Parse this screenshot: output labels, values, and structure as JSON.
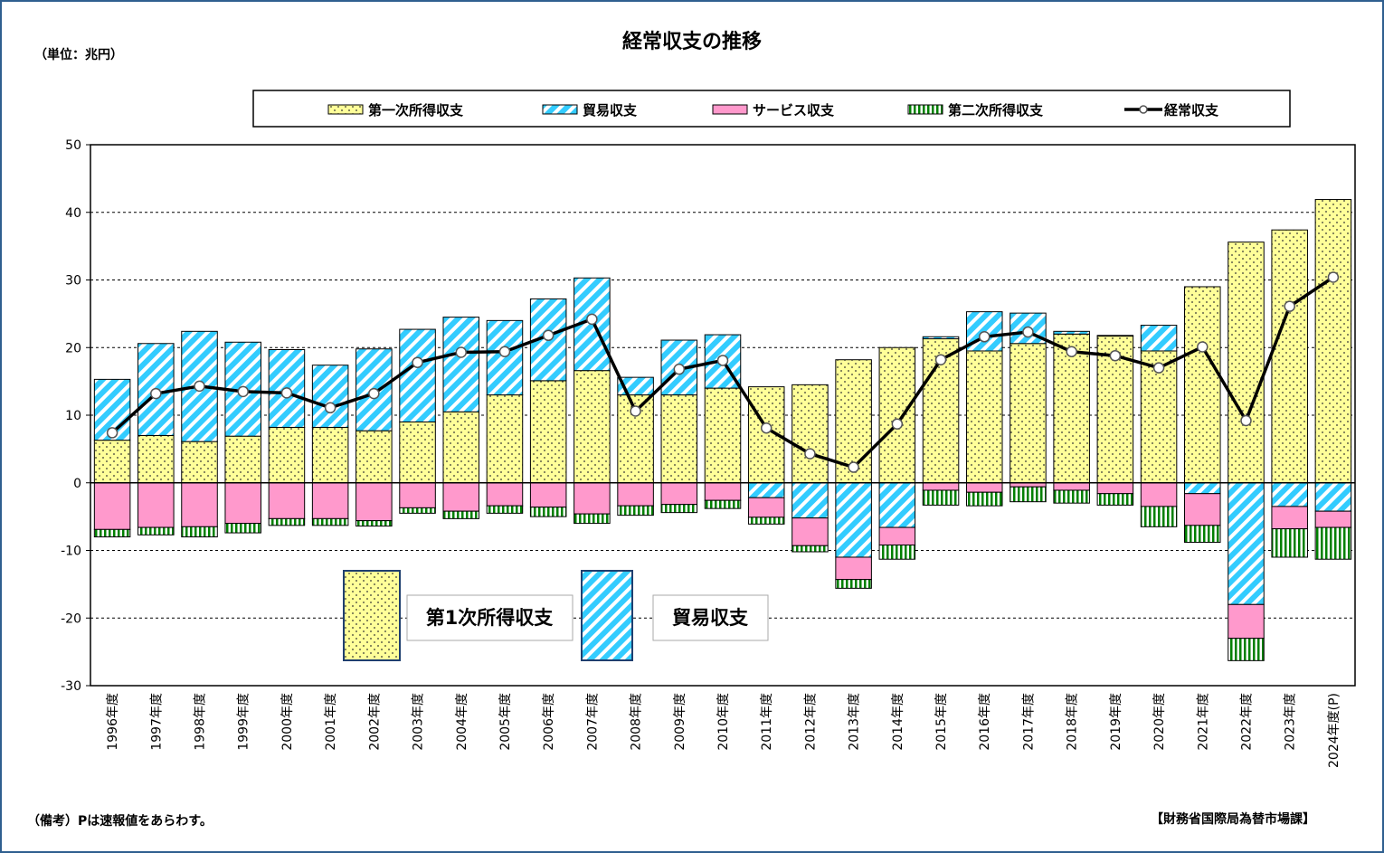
{
  "title": "経常収支の推移",
  "unit_label": "（単位：兆円）",
  "footnote": "（備考）Pは速報値をあらわす。",
  "source": "【財務省国際局為替市場課】",
  "legend": {
    "items": [
      {
        "key": "primary",
        "label": "第一次所得収支"
      },
      {
        "key": "trade",
        "label": "貿易収支"
      },
      {
        "key": "service",
        "label": "サービス収支"
      },
      {
        "key": "secondary",
        "label": "第二次所得収支"
      },
      {
        "key": "current",
        "label": "経常収支"
      }
    ]
  },
  "callouts": [
    {
      "key": "primary",
      "label": "第1次所得収支"
    },
    {
      "key": "trade",
      "label": "貿易収支"
    }
  ],
  "colors": {
    "primary_fill": "#ffff99",
    "trade_fill": "#33ccff",
    "service_fill": "#ff99cc",
    "secondary_fill": "#008000",
    "line": "#000000"
  },
  "chart_data": {
    "type": "bar",
    "stacked": true,
    "ylim": [
      -30,
      50
    ],
    "yticks": [
      -30,
      -20,
      -10,
      0,
      10,
      20,
      30,
      40,
      50
    ],
    "grid": true,
    "legend_position": "top",
    "categories": [
      "1996年度",
      "1997年度",
      "1998年度",
      "1999年度",
      "2000年度",
      "2001年度",
      "2002年度",
      "2003年度",
      "2004年度",
      "2005年度",
      "2006年度",
      "2007年度",
      "2008年度",
      "2009年度",
      "2010年度",
      "2011年度",
      "2012年度",
      "2013年度",
      "2014年度",
      "2015年度",
      "2016年度",
      "2017年度",
      "2018年度",
      "2019年度",
      "2020年度",
      "2021年度",
      "2022年度",
      "2023年度",
      "2024年度(P)"
    ],
    "series": [
      {
        "name": "第一次所得収支",
        "key": "primary",
        "values": [
          6.3,
          7.0,
          6.1,
          6.9,
          8.2,
          8.2,
          7.7,
          9.0,
          10.5,
          13.0,
          15.1,
          16.6,
          13.0,
          13.0,
          14.0,
          14.2,
          14.5,
          18.2,
          20.0,
          21.3,
          19.5,
          20.6,
          22.0,
          21.7,
          19.5,
          29.0,
          35.6,
          37.4,
          41.9
        ]
      },
      {
        "name": "貿易収支",
        "key": "trade",
        "values": [
          9.0,
          13.6,
          16.3,
          13.9,
          11.5,
          9.2,
          12.1,
          13.7,
          14.0,
          11.0,
          12.1,
          13.7,
          2.6,
          8.1,
          7.9,
          -2.2,
          -5.2,
          -11.0,
          -6.6,
          0.3,
          5.8,
          4.5,
          0.4,
          0.1,
          3.8,
          -1.6,
          -18.0,
          -3.5,
          -4.2
        ]
      },
      {
        "name": "サービス収支",
        "key": "service",
        "values": [
          -6.9,
          -6.6,
          -6.5,
          -6.0,
          -5.3,
          -5.3,
          -5.6,
          -3.7,
          -4.2,
          -3.4,
          -3.6,
          -4.6,
          -3.4,
          -3.2,
          -2.6,
          -2.9,
          -4.1,
          -3.3,
          -2.6,
          -1.1,
          -1.4,
          -0.6,
          -1.1,
          -1.6,
          -3.5,
          -4.7,
          -5.0,
          -3.3,
          -2.4
        ]
      },
      {
        "name": "第二次所得収支",
        "key": "secondary",
        "values": [
          -1.1,
          -1.1,
          -1.5,
          -1.4,
          -1.0,
          -1.0,
          -0.8,
          -0.8,
          -1.1,
          -1.1,
          -1.4,
          -1.4,
          -1.4,
          -1.2,
          -1.2,
          -1.0,
          -0.9,
          -1.3,
          -2.1,
          -2.2,
          -2.0,
          -2.2,
          -1.9,
          -1.7,
          -3.0,
          -2.5,
          -3.3,
          -4.2,
          -4.7
        ]
      },
      {
        "name": "経常収支",
        "key": "current",
        "type": "line",
        "values": [
          7.4,
          13.2,
          14.3,
          13.5,
          13.3,
          11.1,
          13.2,
          17.8,
          19.3,
          19.4,
          21.8,
          24.2,
          10.6,
          16.8,
          18.1,
          8.1,
          4.3,
          2.3,
          8.7,
          18.2,
          21.6,
          22.3,
          19.4,
          18.8,
          17.0,
          20.1,
          9.2,
          26.1,
          30.4
        ]
      }
    ]
  }
}
